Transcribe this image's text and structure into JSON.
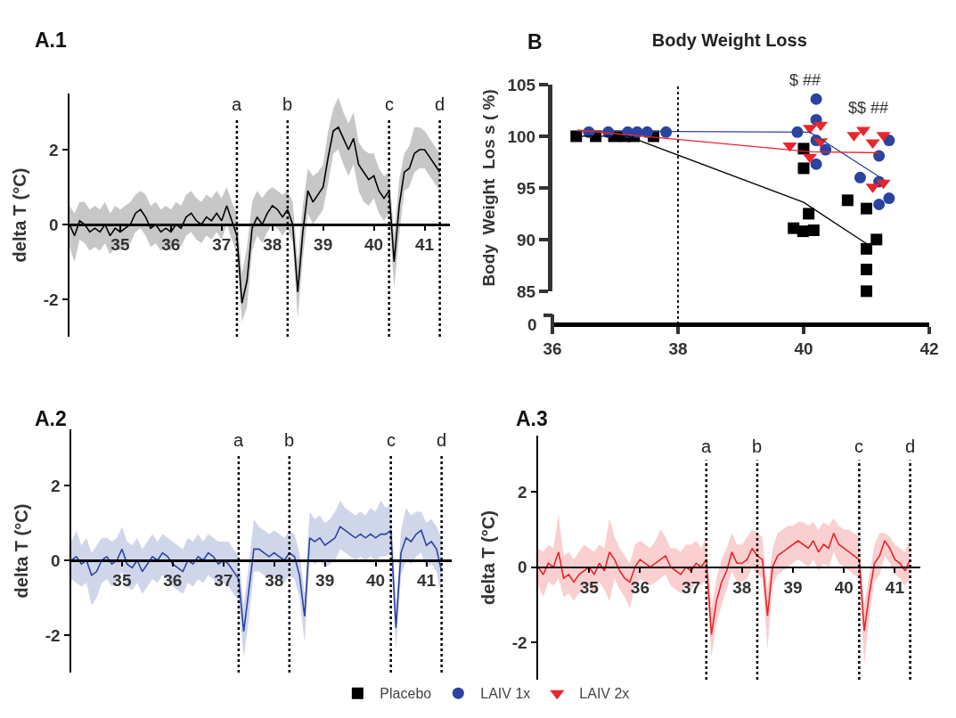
{
  "chart_data": [
    {
      "type": "line",
      "annotations": [
        "A.1"
      ],
      "ylabel": "delta T (°C)",
      "xlim": [
        34,
        41.5
      ],
      "xticks": [
        35,
        36,
        37,
        38,
        39,
        40,
        41
      ],
      "ylim": [
        -3,
        3.5
      ],
      "yticks": [
        -2,
        0,
        2
      ],
      "legend": false,
      "line_style": "solid",
      "x": [
        34,
        34.1,
        34.2,
        34.3,
        34.4,
        34.5,
        34.6,
        34.7,
        34.8,
        34.9,
        35,
        35.1,
        35.2,
        35.3,
        35.4,
        35.5,
        35.6,
        35.7,
        35.8,
        35.9,
        36,
        36.1,
        36.2,
        36.3,
        36.4,
        36.5,
        36.6,
        36.7,
        36.8,
        36.9,
        37,
        37.1,
        37.2,
        37.3,
        37.4,
        37.5,
        37.6,
        37.7,
        37.8,
        37.9,
        38,
        38.1,
        38.2,
        38.3,
        38.4,
        38.5,
        38.6,
        38.7,
        38.8,
        38.9,
        39,
        39.1,
        39.2,
        39.3,
        39.4,
        39.5,
        39.6,
        39.7,
        39.8,
        39.9,
        40,
        40.1,
        40.2,
        40.3,
        40.4,
        40.5,
        40.6,
        40.7,
        40.8,
        40.9,
        41,
        41.1,
        41.2,
        41.3
      ],
      "series": [
        {
          "color": "#000000",
          "values": [
            0.0,
            -0.3,
            0.1,
            0.0,
            -0.2,
            -0.1,
            -0.2,
            0.0,
            -0.3,
            -0.1,
            -0.2,
            -0.1,
            0.0,
            0.3,
            0.4,
            0.2,
            -0.1,
            0.0,
            -0.2,
            -0.1,
            -0.2,
            0.0,
            -0.1,
            0.2,
            0.3,
            0.1,
            0.0,
            0.2,
            0.1,
            0.3,
            0.1,
            0.5,
            0.1,
            -0.3,
            -2.1,
            -1.5,
            -0.1,
            0.2,
            0.0,
            0.3,
            0.5,
            0.4,
            0.2,
            0.4,
            0.0,
            -1.8,
            -0.2,
            0.9,
            0.6,
            0.8,
            1.0,
            1.8,
            2.5,
            2.6,
            2.3,
            2.0,
            2.3,
            1.6,
            1.4,
            1.2,
            1.3,
            0.9,
            0.7,
            0.9,
            -1.0,
            0.5,
            1.4,
            1.5,
            1.9,
            2.0,
            2.0,
            1.8,
            1.6,
            1.4
          ],
          "upper": [
            0.5,
            0.3,
            0.6,
            0.6,
            0.4,
            0.5,
            0.4,
            0.6,
            0.3,
            0.5,
            0.4,
            0.5,
            0.6,
            0.8,
            0.9,
            0.8,
            0.5,
            0.6,
            0.4,
            0.5,
            0.4,
            0.6,
            0.5,
            0.8,
            0.9,
            0.7,
            0.6,
            0.8,
            0.7,
            0.9,
            0.7,
            1.0,
            0.6,
            0.3,
            -1.3,
            -0.6,
            0.6,
            0.9,
            0.7,
            0.9,
            1.0,
            0.9,
            0.8,
            0.9,
            0.6,
            -1.0,
            0.5,
            1.5,
            1.3,
            1.4,
            1.6,
            2.5,
            3.1,
            3.4,
            3.0,
            2.7,
            3.0,
            2.2,
            2.0,
            1.9,
            1.9,
            1.5,
            1.3,
            1.4,
            -0.3,
            1.2,
            1.9,
            2.1,
            2.6,
            2.6,
            2.5,
            2.3,
            2.1,
            1.9
          ],
          "lower": [
            -0.6,
            -1.0,
            -0.4,
            -0.5,
            -0.7,
            -0.6,
            -0.7,
            -0.5,
            -0.8,
            -0.6,
            -0.7,
            -0.6,
            -0.5,
            -0.2,
            -0.1,
            -0.3,
            -0.6,
            -0.5,
            -0.7,
            -0.6,
            -0.7,
            -0.5,
            -0.6,
            -0.3,
            -0.2,
            -0.4,
            -0.5,
            -0.3,
            -0.4,
            -0.2,
            -0.4,
            0.0,
            -0.4,
            -0.8,
            -2.6,
            -2.2,
            -0.7,
            -0.3,
            -0.5,
            -0.2,
            0.0,
            -0.1,
            -0.3,
            -0.1,
            -0.5,
            -2.5,
            -0.9,
            0.3,
            0.0,
            0.2,
            0.4,
            1.1,
            1.9,
            2.0,
            1.6,
            1.3,
            1.6,
            0.9,
            0.6,
            0.5,
            0.7,
            0.3,
            0.1,
            0.3,
            -1.7,
            -0.3,
            0.9,
            1.0,
            1.4,
            1.5,
            1.5,
            1.3,
            1.1,
            0.9
          ]
        }
      ],
      "ref_lines": [
        {
          "axis": "x",
          "value": 37.3,
          "label": "a",
          "line_style": "dotted"
        },
        {
          "axis": "x",
          "value": 38.3,
          "label": "b",
          "line_style": "dotted"
        },
        {
          "axis": "x",
          "value": 40.3,
          "label": "c",
          "line_style": "dotted"
        },
        {
          "axis": "x",
          "value": 41.3,
          "label": "d",
          "line_style": "dotted"
        }
      ]
    },
    {
      "type": "scatter",
      "title": "Body Weight Loss",
      "annotations": [
        "B",
        "$ ##",
        "$$ ##",
        "0"
      ],
      "ylabel": "Body  Weight  Los s ( %)",
      "xlim": [
        36,
        42
      ],
      "xticks": [
        36,
        38,
        40,
        42
      ],
      "ylim": [
        85,
        105
      ],
      "yticks": [
        85,
        90,
        95,
        100,
        105
      ],
      "legend": "bottom",
      "series": [
        {
          "name": "Placebo",
          "color": "#000000",
          "marker": "square",
          "x": [
            36.38,
            36.69,
            36.98,
            37.15,
            37.3,
            37.61,
            40.0,
            40.0,
            40.08,
            39.84,
            39.99,
            40.16,
            40.7,
            41.0,
            41.0,
            41.16,
            41.0,
            41.0
          ],
          "values": [
            100,
            100,
            100,
            100,
            100,
            100,
            98.8,
            96.9,
            92.5,
            91.1,
            90.8,
            90.9,
            93.8,
            93.0,
            89.1,
            90.0,
            87.1,
            85.0
          ]
        },
        {
          "name": "LAIV 1x",
          "color": "#2b44a0",
          "marker": "circle",
          "x": [
            36.58,
            36.89,
            37.2,
            37.35,
            37.51,
            37.81,
            39.9,
            40.2,
            40.2,
            40.2,
            40.35,
            40.2,
            40.9,
            41.2,
            41.2,
            41.2,
            41.36,
            41.36
          ],
          "values": [
            100.4,
            100.4,
            100.4,
            100.4,
            100.4,
            100.4,
            100.4,
            103.6,
            101.6,
            99.6,
            98.7,
            97.3,
            96.0,
            98.1,
            95.6,
            93.4,
            99.6,
            94.0
          ]
        },
        {
          "name": "LAIV 2x",
          "color": "#e8262b",
          "marker": "triangle",
          "x": [
            39.78,
            40.1,
            40.27,
            40.1,
            40.27,
            40.8,
            40.95,
            41.1,
            41.27,
            41.1,
            41.27
          ],
          "values": [
            99.1,
            100.8,
            101.1,
            98.0,
            99.5,
            100.1,
            100.6,
            99.4,
            100.1,
            95.1,
            95.5
          ]
        },
        {
          "type": "line",
          "color": "#000000",
          "marker": "none",
          "x": [
            36.4,
            37.2,
            40,
            41
          ],
          "values": [
            100,
            100,
            93.6,
            89.6
          ]
        },
        {
          "type": "line",
          "color": "#2b44a0",
          "marker": "none",
          "x": [
            36.4,
            40.1,
            41.2
          ],
          "values": [
            100.5,
            100.4,
            96.1
          ]
        },
        {
          "type": "line",
          "color": "#e8262b",
          "marker": "none",
          "x": [
            36.4,
            40.1,
            41.2
          ],
          "values": [
            100.6,
            98.5,
            98.4
          ]
        }
      ],
      "ref_lines": [
        {
          "axis": "x",
          "value": 38,
          "line_style": "dotted"
        }
      ]
    },
    {
      "type": "line",
      "annotations": [
        "A.2"
      ],
      "ylabel": "delta T (°C)",
      "xlim": [
        34,
        41.5
      ],
      "xticks": [
        35,
        36,
        37,
        38,
        39,
        40,
        41
      ],
      "ylim": [
        -3,
        3.5
      ],
      "yticks": [
        -2,
        0,
        2
      ],
      "legend": false,
      "line_style": "solid",
      "x": [
        34,
        34.1,
        34.2,
        34.3,
        34.4,
        34.5,
        34.6,
        34.7,
        34.8,
        34.9,
        35,
        35.1,
        35.2,
        35.3,
        35.4,
        35.5,
        35.6,
        35.7,
        35.8,
        35.9,
        36,
        36.1,
        36.2,
        36.3,
        36.4,
        36.5,
        36.6,
        36.7,
        36.8,
        36.9,
        37,
        37.1,
        37.2,
        37.3,
        37.4,
        37.5,
        37.6,
        37.7,
        37.8,
        37.9,
        38,
        38.1,
        38.2,
        38.3,
        38.4,
        38.5,
        38.6,
        38.7,
        38.8,
        38.9,
        39,
        39.1,
        39.2,
        39.3,
        39.4,
        39.5,
        39.6,
        39.7,
        39.8,
        39.9,
        40,
        40.1,
        40.2,
        40.3,
        40.4,
        40.5,
        40.6,
        40.7,
        40.8,
        40.9,
        41,
        41.1,
        41.2,
        41.3
      ],
      "series": [
        {
          "color": "#2b44a0",
          "values": [
            0.0,
            0.1,
            -0.1,
            0.0,
            -0.4,
            -0.3,
            0.0,
            0.1,
            -0.1,
            0.0,
            0.3,
            -0.1,
            -0.2,
            0.0,
            -0.3,
            -0.1,
            0.1,
            0.0,
            0.2,
            0.1,
            -0.1,
            -0.2,
            -0.3,
            0.0,
            -0.1,
            0.1,
            0.0,
            0.2,
            0.1,
            -0.1,
            0.0,
            -0.1,
            -0.3,
            -0.5,
            -1.9,
            -0.8,
            0.3,
            0.3,
            0.2,
            0.1,
            0.2,
            0.1,
            0.0,
            0.2,
            0.1,
            -0.4,
            -1.5,
            0.6,
            0.5,
            0.6,
            0.4,
            0.5,
            0.6,
            0.9,
            0.8,
            0.7,
            0.6,
            0.7,
            0.6,
            0.7,
            0.6,
            0.7,
            0.7,
            0.8,
            -1.8,
            0.2,
            0.6,
            0.5,
            0.7,
            0.8,
            0.4,
            0.5,
            0.3,
            -0.3
          ],
          "upper": [
            0.5,
            0.8,
            0.4,
            0.6,
            0.2,
            0.4,
            0.6,
            0.6,
            0.5,
            0.6,
            0.9,
            0.5,
            0.4,
            0.6,
            0.3,
            0.5,
            0.7,
            0.5,
            0.7,
            0.6,
            0.5,
            0.4,
            0.3,
            0.6,
            0.5,
            0.7,
            0.5,
            0.7,
            0.6,
            0.5,
            0.5,
            0.5,
            0.3,
            0.1,
            -1.2,
            -0.1,
            1.1,
            0.9,
            0.8,
            0.7,
            0.8,
            0.7,
            0.6,
            0.8,
            0.7,
            0.2,
            -0.9,
            1.3,
            1.1,
            1.2,
            1.0,
            1.1,
            1.3,
            1.6,
            1.4,
            1.3,
            1.2,
            1.3,
            1.2,
            1.4,
            1.3,
            1.6,
            1.4,
            1.5,
            -1.2,
            0.8,
            1.4,
            1.2,
            1.3,
            1.3,
            1.0,
            1.1,
            0.9,
            0.6
          ],
          "lower": [
            -0.5,
            -0.6,
            -0.7,
            -0.6,
            -1.2,
            -1.0,
            -0.6,
            -0.5,
            -0.7,
            -0.6,
            -0.3,
            -0.7,
            -0.8,
            -0.6,
            -0.9,
            -0.7,
            -0.5,
            -0.6,
            -0.4,
            -0.5,
            -0.7,
            -0.8,
            -0.9,
            -0.6,
            -0.7,
            -0.5,
            -0.6,
            -0.4,
            -0.5,
            -0.7,
            -0.6,
            -0.7,
            -0.9,
            -1.1,
            -2.6,
            -1.6,
            -0.3,
            -0.3,
            -0.4,
            -0.5,
            -0.4,
            -0.5,
            -0.6,
            -0.4,
            -0.5,
            -1.0,
            -2.2,
            0.0,
            -0.1,
            0.0,
            -0.2,
            -0.1,
            0.0,
            0.3,
            0.2,
            0.1,
            0.0,
            0.1,
            0.0,
            0.1,
            0.0,
            0.1,
            0.1,
            0.2,
            -2.4,
            -0.4,
            0.0,
            -0.1,
            0.1,
            0.2,
            -0.2,
            -0.1,
            -0.3,
            -1.0
          ]
        }
      ],
      "ref_lines": [
        {
          "axis": "x",
          "value": 37.3,
          "label": "a",
          "line_style": "dotted"
        },
        {
          "axis": "x",
          "value": 38.3,
          "label": "b",
          "line_style": "dotted"
        },
        {
          "axis": "x",
          "value": 40.3,
          "label": "c",
          "line_style": "dotted"
        },
        {
          "axis": "x",
          "value": 41.3,
          "label": "d",
          "line_style": "dotted"
        }
      ]
    },
    {
      "type": "line",
      "annotations": [
        "A.3"
      ],
      "ylabel": "delta T (°C)",
      "xlim": [
        34,
        41.5
      ],
      "xticks": [
        35,
        36,
        37,
        38,
        39,
        40,
        41
      ],
      "ylim": [
        -3,
        3.5
      ],
      "yticks": [
        -2,
        0,
        2
      ],
      "legend": false,
      "line_style": "solid",
      "x": [
        34,
        34.1,
        34.2,
        34.3,
        34.4,
        34.5,
        34.6,
        34.7,
        34.8,
        34.9,
        35,
        35.1,
        35.2,
        35.3,
        35.4,
        35.5,
        35.6,
        35.7,
        35.8,
        35.9,
        36,
        36.1,
        36.2,
        36.3,
        36.4,
        36.5,
        36.6,
        36.7,
        36.8,
        36.9,
        37,
        37.1,
        37.2,
        37.3,
        37.4,
        37.5,
        37.6,
        37.7,
        37.8,
        37.9,
        38,
        38.1,
        38.2,
        38.3,
        38.4,
        38.5,
        38.6,
        38.7,
        38.8,
        38.9,
        39,
        39.1,
        39.2,
        39.3,
        39.4,
        39.5,
        39.6,
        39.7,
        39.8,
        39.9,
        40,
        40.1,
        40.2,
        40.3,
        40.4,
        40.5,
        40.6,
        40.7,
        40.8,
        40.9,
        41,
        41.1,
        41.2,
        41.3
      ],
      "series": [
        {
          "color": "#e8262b",
          "values": [
            0.0,
            -0.2,
            0.1,
            0.0,
            0.4,
            -0.3,
            -0.2,
            -0.4,
            -0.2,
            -0.1,
            0.0,
            -0.2,
            0.1,
            -0.1,
            0.4,
            0.2,
            -0.1,
            -0.3,
            -0.4,
            0.0,
            0.2,
            0.1,
            0.0,
            0.1,
            0.2,
            0.3,
            0.0,
            -0.1,
            -0.2,
            0.0,
            -0.1,
            0.1,
            0.0,
            0.2,
            -1.8,
            -0.9,
            -0.4,
            -0.1,
            0.4,
            0.1,
            0.1,
            0.2,
            0.5,
            0.3,
            0.2,
            -1.3,
            0.0,
            0.3,
            0.4,
            0.5,
            0.6,
            0.7,
            0.6,
            0.5,
            0.7,
            0.4,
            0.6,
            0.5,
            0.9,
            0.6,
            0.5,
            0.4,
            0.3,
            0.2,
            -1.7,
            -0.7,
            0.1,
            0.3,
            0.7,
            0.5,
            0.2,
            0.1,
            -0.1,
            0.2
          ],
          "upper": [
            0.5,
            0.4,
            0.6,
            0.5,
            1.4,
            0.3,
            0.4,
            0.2,
            0.4,
            0.6,
            0.5,
            0.4,
            0.6,
            0.5,
            1.3,
            0.8,
            0.5,
            0.3,
            0.1,
            0.6,
            0.7,
            0.6,
            0.5,
            0.7,
            1.0,
            0.8,
            0.5,
            0.5,
            0.4,
            0.6,
            0.6,
            0.7,
            0.5,
            0.8,
            -1.1,
            -0.3,
            0.2,
            0.5,
            0.9,
            0.6,
            0.6,
            0.8,
            1.0,
            0.9,
            0.8,
            -0.6,
            0.5,
            0.9,
            1.0,
            1.1,
            1.1,
            1.2,
            1.2,
            1.1,
            1.2,
            1.0,
            1.2,
            1.1,
            1.3,
            1.1,
            1.0,
            1.0,
            0.9,
            0.8,
            -1.0,
            -0.2,
            0.6,
            0.9,
            0.9,
            0.8,
            0.6,
            0.5,
            0.4,
            0.8
          ],
          "lower": [
            -0.5,
            -0.8,
            -0.4,
            -0.5,
            -0.3,
            -0.8,
            -0.7,
            -0.9,
            -0.7,
            -0.6,
            -0.5,
            -0.7,
            -0.4,
            -0.6,
            -0.9,
            -0.3,
            -0.6,
            -0.8,
            -1.1,
            -0.5,
            -0.3,
            -0.4,
            -0.5,
            -0.4,
            -0.3,
            -0.2,
            -0.5,
            -0.6,
            -0.7,
            -0.5,
            -0.6,
            -0.4,
            -0.5,
            -0.3,
            -2.4,
            -1.5,
            -1.0,
            -0.6,
            -0.1,
            -0.4,
            -0.4,
            -0.3,
            0.0,
            -0.2,
            -0.3,
            -2.2,
            -0.5,
            -0.2,
            -0.1,
            0.0,
            0.1,
            0.2,
            0.1,
            0.0,
            0.2,
            -0.1,
            0.1,
            0.0,
            0.4,
            0.1,
            0.0,
            -0.1,
            -0.2,
            -0.3,
            -2.6,
            -1.3,
            -0.4,
            -0.2,
            0.3,
            0.1,
            -0.2,
            -0.3,
            -0.5,
            -0.3
          ]
        }
      ],
      "ref_lines": [
        {
          "axis": "x",
          "value": 37.3,
          "label": "a",
          "line_style": "dotted"
        },
        {
          "axis": "x",
          "value": 38.3,
          "label": "b",
          "line_style": "dotted"
        },
        {
          "axis": "x",
          "value": 40.3,
          "label": "c",
          "line_style": "dotted"
        },
        {
          "axis": "x",
          "value": 41.3,
          "label": "d",
          "line_style": "dotted"
        }
      ]
    }
  ]
}
